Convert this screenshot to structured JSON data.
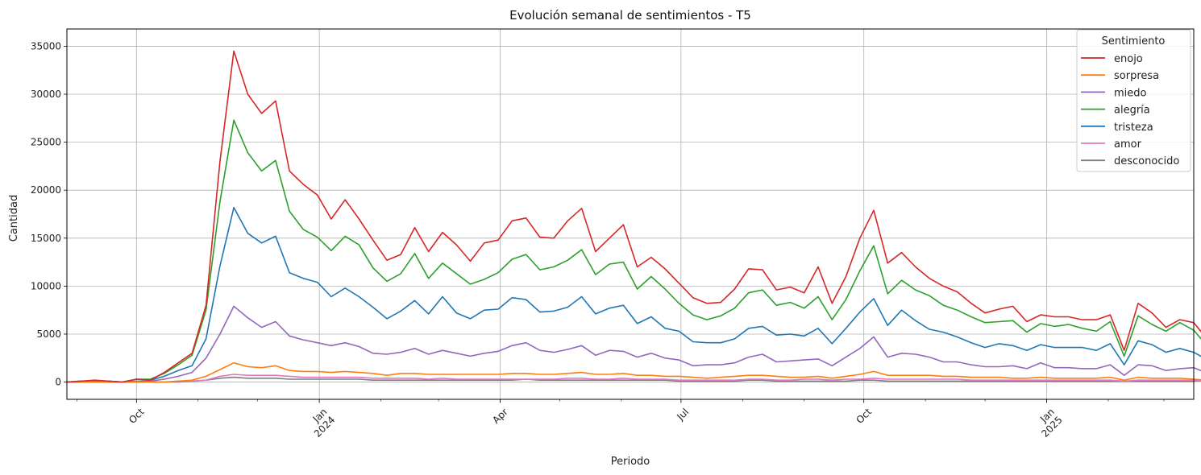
{
  "chart_data": {
    "type": "line",
    "title": "Evolución semanal de sentimientos - T5",
    "xlabel": "Periodo",
    "ylabel": "Cantidad",
    "ylim": [
      -1800,
      36800
    ],
    "xlim": [
      "2023-08-27",
      "2025-03-16"
    ],
    "yticks": [
      0,
      5000,
      10000,
      15000,
      20000,
      25000,
      30000,
      35000
    ],
    "xticks": [
      {
        "date": "2023-10-01",
        "label": "Oct",
        "label2": ""
      },
      {
        "date": "2024-01-01",
        "label": "Jan",
        "label2": "2024"
      },
      {
        "date": "2024-04-01",
        "label": "Apr",
        "label2": ""
      },
      {
        "date": "2024-07-01",
        "label": "Jul",
        "label2": ""
      },
      {
        "date": "2024-10-01",
        "label": "Oct",
        "label2": ""
      },
      {
        "date": "2025-01-01",
        "label": "Jan",
        "label2": "2025"
      }
    ],
    "grid": true,
    "legend": {
      "title": "Sentimiento",
      "placement": "top-right"
    },
    "start_date": "2023-08-27",
    "week_step_days": 7,
    "series": [
      {
        "name": "enojo",
        "color": "#d62728",
        "values": [
          0,
          100,
          200,
          100,
          0,
          300,
          200,
          1000,
          2000,
          3000,
          8000,
          23000,
          34500,
          30000,
          28000,
          29300,
          22000,
          20600,
          19500,
          17000,
          19000,
          17000,
          14800,
          12700,
          13300,
          16100,
          13600,
          15600,
          14300,
          12600,
          14500,
          14800,
          16800,
          17100,
          15100,
          15000,
          16800,
          18100,
          13600,
          15000,
          16400,
          12000,
          13000,
          11800,
          10300,
          8800,
          8200,
          8300,
          9700,
          11800,
          11700,
          9600,
          9900,
          9300,
          12000,
          8200,
          11000,
          15000,
          17900,
          12400,
          13500,
          12000,
          10800,
          10000,
          9400,
          8200,
          7200,
          7600,
          7900,
          6300,
          7000,
          6800,
          6800,
          6500,
          6500,
          7000,
          3300,
          8200,
          7200,
          5700,
          6500,
          6200,
          4400
        ]
      },
      {
        "name": "sorpresa",
        "color": "#ff7f0e",
        "values": [
          0,
          0,
          0,
          0,
          0,
          0,
          0,
          0,
          100,
          200,
          600,
          1300,
          2000,
          1600,
          1500,
          1700,
          1200,
          1100,
          1100,
          1000,
          1100,
          1000,
          900,
          700,
          900,
          900,
          800,
          800,
          800,
          800,
          800,
          800,
          900,
          900,
          800,
          800,
          900,
          1000,
          800,
          800,
          900,
          700,
          700,
          600,
          600,
          500,
          400,
          500,
          600,
          700,
          700,
          600,
          500,
          500,
          600,
          400,
          600,
          800,
          1100,
          700,
          700,
          700,
          700,
          600,
          600,
          500,
          500,
          500,
          400,
          400,
          500,
          400,
          400,
          400,
          400,
          500,
          200,
          500,
          400,
          400,
          400,
          300,
          200
        ]
      },
      {
        "name": "miedo",
        "color": "#9467bd",
        "values": [
          0,
          0,
          100,
          0,
          0,
          100,
          100,
          300,
          600,
          1000,
          2500,
          5000,
          7900,
          6700,
          5700,
          6300,
          4800,
          4400,
          4100,
          3800,
          4100,
          3700,
          3000,
          2900,
          3100,
          3500,
          2900,
          3300,
          3000,
          2700,
          3000,
          3200,
          3800,
          4100,
          3300,
          3100,
          3400,
          3800,
          2800,
          3300,
          3200,
          2600,
          3000,
          2500,
          2300,
          1700,
          1800,
          1800,
          2000,
          2600,
          2900,
          2100,
          2200,
          2300,
          2400,
          1700,
          2600,
          3500,
          4700,
          2600,
          3000,
          2900,
          2600,
          2100,
          2100,
          1800,
          1600,
          1600,
          1700,
          1400,
          2000,
          1500,
          1500,
          1400,
          1400,
          1800,
          700,
          1800,
          1700,
          1200,
          1400,
          1500,
          900
        ]
      },
      {
        "name": "alegría",
        "color": "#2ca02c",
        "values": [
          0,
          100,
          100,
          100,
          0,
          300,
          300,
          900,
          1800,
          2800,
          7500,
          18800,
          27300,
          23900,
          22000,
          23100,
          17800,
          15900,
          15100,
          13700,
          15200,
          14300,
          11900,
          10500,
          11300,
          13400,
          10800,
          12400,
          11300,
          10200,
          10700,
          11400,
          12800,
          13300,
          11700,
          12000,
          12700,
          13800,
          11200,
          12300,
          12500,
          9700,
          11000,
          9700,
          8200,
          7000,
          6500,
          6900,
          7700,
          9300,
          9600,
          8000,
          8300,
          7700,
          8900,
          6500,
          8600,
          11600,
          14200,
          9200,
          10600,
          9600,
          9000,
          8000,
          7500,
          6800,
          6200,
          6300,
          6400,
          5200,
          6100,
          5800,
          6000,
          5600,
          5300,
          6300,
          2700,
          6900,
          6000,
          5300,
          6200,
          5400,
          3700
        ]
      },
      {
        "name": "tristeza",
        "color": "#1f77b4",
        "values": [
          0,
          100,
          100,
          100,
          0,
          300,
          200,
          600,
          1200,
          1700,
          4500,
          12100,
          18200,
          15500,
          14500,
          15200,
          11400,
          10800,
          10400,
          8900,
          9800,
          8900,
          7800,
          6600,
          7400,
          8500,
          7100,
          8900,
          7200,
          6600,
          7500,
          7600,
          8800,
          8600,
          7300,
          7400,
          7800,
          8900,
          7100,
          7700,
          8000,
          6100,
          6800,
          5600,
          5300,
          4200,
          4100,
          4100,
          4500,
          5600,
          5800,
          4900,
          5000,
          4800,
          5600,
          4000,
          5600,
          7300,
          8700,
          5900,
          7500,
          6400,
          5500,
          5200,
          4700,
          4100,
          3600,
          4000,
          3800,
          3300,
          3900,
          3600,
          3600,
          3600,
          3300,
          4000,
          1800,
          4300,
          3900,
          3100,
          3500,
          3100,
          2300
        ]
      },
      {
        "name": "amor",
        "color": "#e377c2",
        "values": [
          0,
          0,
          0,
          0,
          0,
          0,
          0,
          0,
          100,
          100,
          200,
          600,
          800,
          700,
          700,
          700,
          600,
          500,
          500,
          500,
          500,
          500,
          400,
          400,
          400,
          400,
          300,
          400,
          300,
          300,
          300,
          300,
          300,
          300,
          300,
          300,
          400,
          400,
          300,
          300,
          400,
          300,
          300,
          300,
          200,
          200,
          200,
          200,
          200,
          300,
          300,
          200,
          200,
          300,
          300,
          200,
          300,
          300,
          400,
          300,
          300,
          300,
          300,
          300,
          300,
          200,
          200,
          200,
          200,
          200,
          200,
          200,
          200,
          200,
          200,
          200,
          100,
          200,
          200,
          200,
          200,
          200,
          100
        ]
      },
      {
        "name": "desconocido",
        "color": "#7f7f7f",
        "values": [
          0,
          0,
          0,
          0,
          0,
          0,
          0,
          0,
          0,
          100,
          200,
          400,
          500,
          400,
          400,
          400,
          300,
          300,
          300,
          300,
          300,
          300,
          200,
          200,
          200,
          200,
          200,
          200,
          200,
          200,
          200,
          200,
          200,
          300,
          200,
          200,
          200,
          200,
          200,
          200,
          200,
          200,
          200,
          200,
          100,
          100,
          100,
          100,
          100,
          200,
          200,
          100,
          100,
          100,
          100,
          100,
          100,
          200,
          200,
          100,
          100,
          100,
          100,
          100,
          100,
          100,
          100,
          100,
          100,
          100,
          100,
          100,
          100,
          100,
          100,
          100,
          100,
          100,
          100,
          100,
          100,
          100,
          100
        ]
      }
    ]
  }
}
